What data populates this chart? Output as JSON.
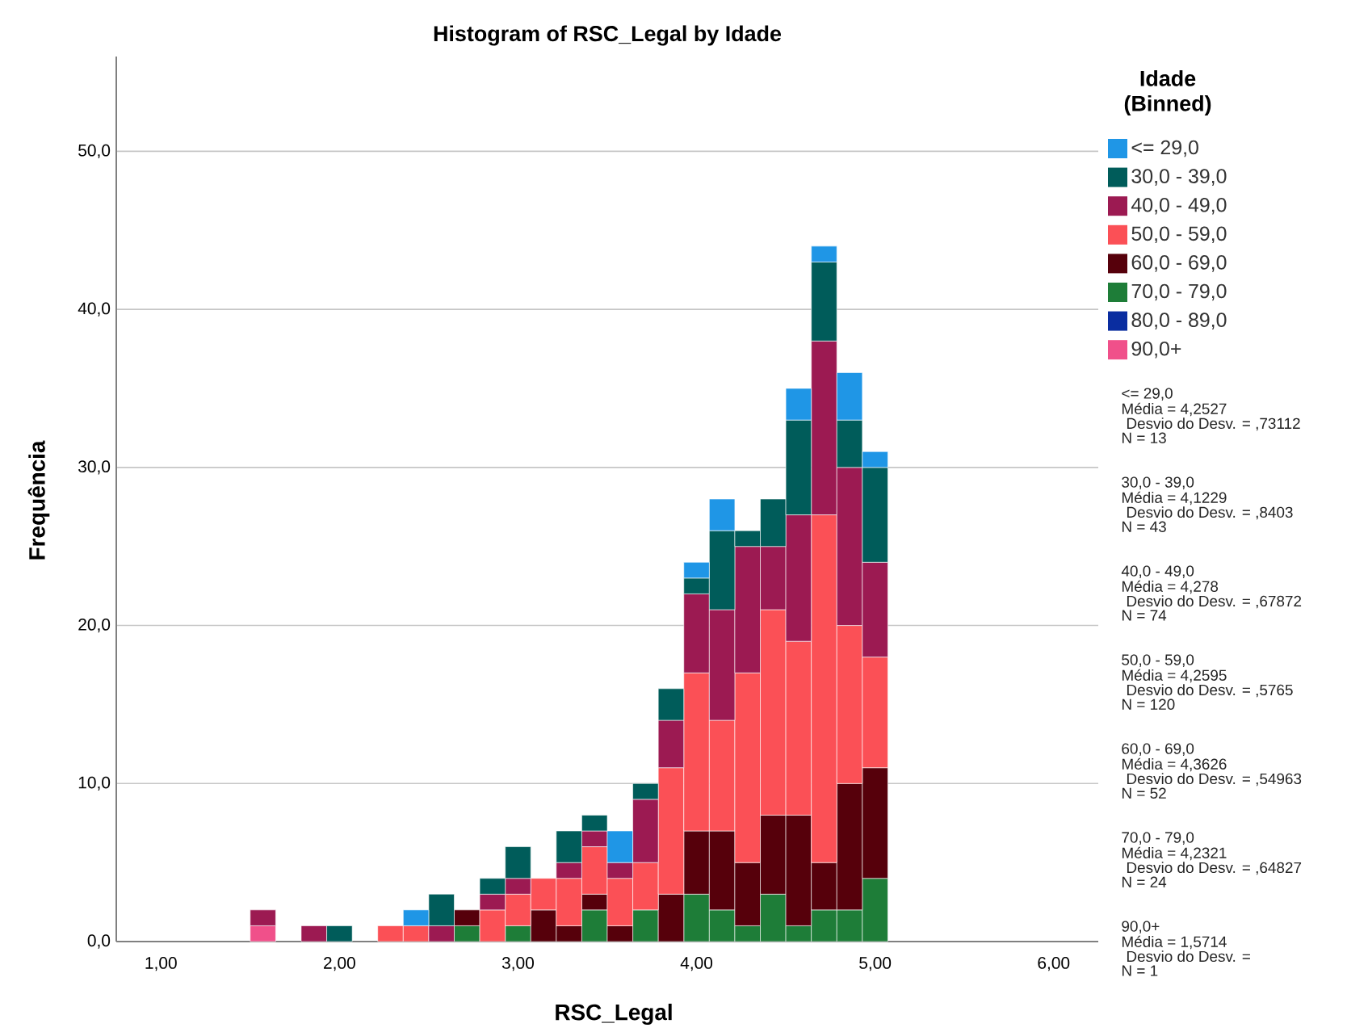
{
  "chart_data": {
    "type": "bar",
    "title": "Histogram of RSC_Legal by Idade",
    "xlabel": "RSC_Legal",
    "ylabel": "Frequência",
    "legend_title": "Idade (Binned)",
    "x": [
      1.5714,
      1.7143,
      1.8571,
      2.0,
      2.1429,
      2.2857,
      2.4286,
      2.5714,
      2.7143,
      2.8571,
      3.0,
      3.1429,
      3.2857,
      3.4286,
      3.5714,
      3.7143,
      3.8571,
      4.0,
      4.1429,
      4.2857,
      4.4286,
      4.5714,
      4.7143,
      4.8571,
      5.0
    ],
    "stacked": true,
    "series": [
      {
        "name": "90,0+",
        "color": "#f0508a",
        "values": [
          1,
          0,
          0,
          0,
          0,
          0,
          0,
          0,
          0,
          0,
          0,
          0,
          0,
          0,
          0,
          0,
          0,
          0,
          0,
          0,
          0,
          0,
          0,
          0,
          0
        ]
      },
      {
        "name": "80,0 - 89,0",
        "color": "#0a2da0",
        "values": [
          0,
          0,
          0,
          0,
          0,
          0,
          0,
          0,
          0,
          0,
          0,
          0,
          0,
          0,
          0,
          0,
          0,
          0,
          0,
          0,
          0,
          0,
          0,
          0,
          0
        ]
      },
      {
        "name": "70,0 - 79,0",
        "color": "#1e7d38",
        "values": [
          0,
          0,
          0,
          0,
          0,
          0,
          0,
          0,
          1,
          0,
          1,
          0,
          0,
          2,
          0,
          2,
          0,
          3,
          2,
          1,
          3,
          1,
          2,
          2,
          4
        ]
      },
      {
        "name": "60,0 - 69,0",
        "color": "#56000b",
        "values": [
          0,
          0,
          0,
          0,
          0,
          0,
          0,
          0,
          1,
          0,
          0,
          2,
          1,
          1,
          1,
          0,
          3,
          4,
          5,
          4,
          5,
          7,
          3,
          8,
          7
        ]
      },
      {
        "name": "50,0 - 59,0",
        "color": "#fb5056",
        "values": [
          0,
          0,
          0,
          0,
          0,
          1,
          1,
          0,
          0,
          2,
          2,
          2,
          3,
          3,
          3,
          3,
          8,
          10,
          7,
          12,
          13,
          11,
          22,
          10,
          7
        ]
      },
      {
        "name": "40,0 - 49,0",
        "color": "#9c1a52",
        "values": [
          1,
          0,
          1,
          0,
          0,
          0,
          0,
          1,
          0,
          1,
          1,
          0,
          1,
          1,
          1,
          4,
          3,
          5,
          7,
          8,
          4,
          8,
          11,
          10,
          6
        ]
      },
      {
        "name": "30,0 - 39,0",
        "color": "#005c5a",
        "values": [
          0,
          0,
          0,
          1,
          0,
          0,
          0,
          2,
          0,
          1,
          2,
          0,
          2,
          1,
          0,
          1,
          2,
          1,
          5,
          1,
          3,
          6,
          5,
          3,
          6
        ]
      },
      {
        "name": "<= 29,0",
        "color": "#1f96e6",
        "values": [
          0,
          0,
          0,
          0,
          0,
          0,
          1,
          0,
          0,
          0,
          0,
          0,
          0,
          0,
          2,
          0,
          0,
          1,
          2,
          0,
          0,
          2,
          1,
          3,
          1
        ]
      }
    ],
    "xlim": [
      0.75,
      6.25
    ],
    "ylim": [
      0,
      56
    ],
    "xticks": [
      {
        "value": 1,
        "label": "1,00"
      },
      {
        "value": 2,
        "label": "2,00"
      },
      {
        "value": 3,
        "label": "3,00"
      },
      {
        "value": 4,
        "label": "4,00"
      },
      {
        "value": 5,
        "label": "5,00"
      },
      {
        "value": 6,
        "label": "6,00"
      }
    ],
    "yticks": [
      {
        "value": 0,
        "label": "0,0"
      },
      {
        "value": 10,
        "label": "10,0"
      },
      {
        "value": 20,
        "label": "20,0"
      },
      {
        "value": 30,
        "label": "30,0"
      },
      {
        "value": 40,
        "label": "40,0"
      },
      {
        "value": 50,
        "label": "50,0"
      }
    ],
    "grid": "y",
    "legend": "right",
    "annotations": [
      "<= 29,0",
      "Média = 4,2527",
      "Desvio do Desv. = ,73112",
      "N = 13",
      "30,0 - 39,0",
      "Média = 4,1229",
      "Desvio do Desv. = ,8403",
      "N = 43",
      "40,0 - 49,0",
      "Média = 4,278",
      "Desvio do Desv. = ,67872",
      "N = 74",
      "50,0 - 59,0",
      "Média = 4,2595",
      "Desvio do Desv. = ,5765",
      "N = 120",
      "60,0 - 69,0",
      "Média = 4,3626",
      "Desvio do Desv. = ,54963",
      "N = 52",
      "70,0 - 79,0",
      "Média = 4,2321",
      "Desvio do Desv. = ,64827",
      "N = 24",
      "90,0+",
      "Média = 1,5714",
      "Desvio do Desv. =",
      "N = 1"
    ]
  }
}
